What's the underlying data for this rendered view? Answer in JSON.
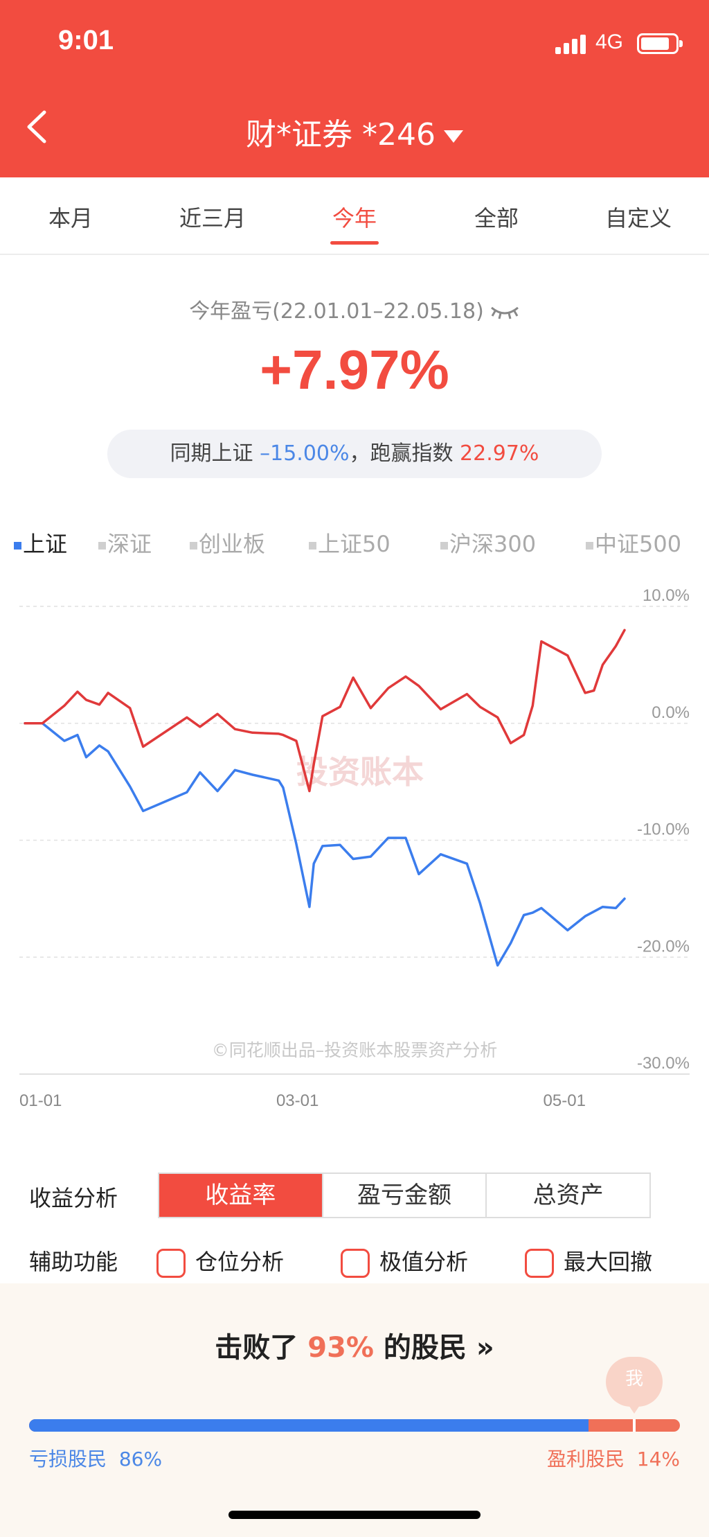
{
  "status": {
    "time": "9:01",
    "network": "4G"
  },
  "header": {
    "account": "财*证券 *246"
  },
  "tabs": [
    {
      "label": "本月",
      "active": false
    },
    {
      "label": "近三月",
      "active": false
    },
    {
      "label": "今年",
      "active": true
    },
    {
      "label": "全部",
      "active": false
    },
    {
      "label": "自定义",
      "active": false
    }
  ],
  "summary": {
    "period": "今年盈亏(22.01.01–22.05.18)",
    "pnl_pct": "+7.97%",
    "compare_prefix": "同期上证",
    "index_pct": "–15.00%",
    "compare_mid": "，跑赢指数",
    "beat_pct": "22.97%"
  },
  "indices": [
    {
      "label": "上证",
      "active": true
    },
    {
      "label": "深证",
      "active": false
    },
    {
      "label": "创业板",
      "active": false
    },
    {
      "label": "上证50",
      "active": false
    },
    {
      "label": "沪深300",
      "active": false
    },
    {
      "label": "中证500",
      "active": false
    }
  ],
  "chart_data": {
    "type": "line",
    "ylim": [
      -30,
      10
    ],
    "y_ticks": [
      "10.0%",
      "0.0%",
      "-10.0%",
      "-20.0%",
      "-30.0%"
    ],
    "x_ticks": [
      "01-01",
      "03-01",
      "05-01"
    ],
    "watermark": "投资账本",
    "footer_note": "©同花顺出品–投资账本股票资产分析",
    "colors": {
      "account": "#e0393a",
      "index": "#3b7ded"
    },
    "series": [
      {
        "key": "account",
        "x": [
          "01-01",
          "01-05",
          "01-10",
          "01-13",
          "01-15",
          "01-18",
          "01-20",
          "01-25",
          "01-28",
          "02-07",
          "02-10",
          "02-14",
          "02-18",
          "02-22",
          "02-28",
          "03-01",
          "03-04",
          "03-07",
          "03-08",
          "03-10",
          "03-14",
          "03-17",
          "03-21",
          "03-25",
          "03-29",
          "04-01",
          "04-06",
          "04-12",
          "04-15",
          "04-19",
          "04-22",
          "04-25",
          "04-27",
          "04-29",
          "05-05",
          "05-09",
          "05-11",
          "05-13",
          "05-16",
          "05-18"
        ],
        "values": [
          0,
          0,
          1.5,
          2.7,
          2.0,
          1.6,
          2.6,
          1.3,
          -2.0,
          0.5,
          -0.3,
          0.8,
          -0.5,
          -0.8,
          -0.9,
          -1.0,
          -1.5,
          -5.8,
          -3.5,
          0.6,
          1.4,
          3.9,
          1.3,
          3.0,
          4.0,
          3.2,
          1.2,
          2.5,
          1.4,
          0.5,
          -1.7,
          -1.0,
          1.5,
          7.0,
          5.8,
          2.6,
          2.8,
          5.0,
          6.6,
          7.97
        ]
      },
      {
        "key": "index",
        "x": [
          "01-01",
          "01-05",
          "01-10",
          "01-13",
          "01-15",
          "01-18",
          "01-20",
          "01-25",
          "01-28",
          "02-07",
          "02-10",
          "02-14",
          "02-18",
          "02-22",
          "02-28",
          "03-01",
          "03-04",
          "03-07",
          "03-08",
          "03-10",
          "03-14",
          "03-17",
          "03-21",
          "03-25",
          "03-29",
          "04-01",
          "04-06",
          "04-12",
          "04-15",
          "04-19",
          "04-22",
          "04-25",
          "04-27",
          "04-29",
          "05-05",
          "05-09",
          "05-11",
          "05-13",
          "05-16",
          "05-18"
        ],
        "values": [
          0,
          0,
          -1.5,
          -1.0,
          -2.9,
          -1.9,
          -2.4,
          -5.4,
          -7.5,
          -5.9,
          -4.2,
          -5.8,
          -4.0,
          -4.4,
          -4.9,
          -5.5,
          -10.3,
          -15.7,
          -12.0,
          -10.5,
          -10.4,
          -11.6,
          -11.4,
          -9.8,
          -9.8,
          -12.9,
          -11.2,
          -12.0,
          -15.4,
          -20.7,
          -18.8,
          -16.4,
          -16.2,
          -15.8,
          -17.7,
          -16.5,
          -16.1,
          -15.7,
          -15.8,
          -15.0
        ]
      }
    ]
  },
  "analysis": {
    "label": "收益分析",
    "options": [
      "收益率",
      "盈亏金额",
      "总资产"
    ]
  },
  "aux": {
    "label": "辅助功能",
    "options": [
      "仓位分析",
      "极值分析",
      "最大回撤"
    ]
  },
  "beat": {
    "title_prefix": "击败了",
    "title_pct": "93%",
    "title_suffix": "的股民 »",
    "me": "我",
    "loss_label": "亏损股民",
    "loss_pct": "86%",
    "gain_label": "盈利股民",
    "gain_pct": "14%",
    "loss_share": 0.86,
    "me_position": 0.93
  }
}
